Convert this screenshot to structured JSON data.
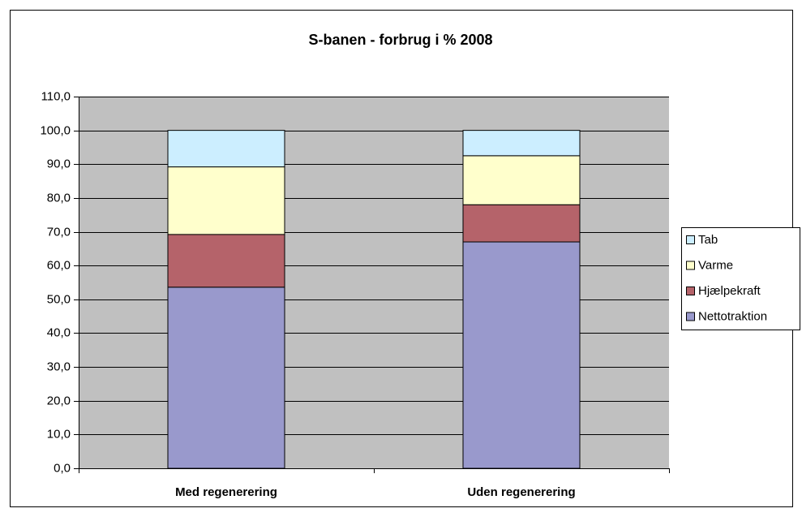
{
  "chart_data": {
    "type": "stacked_bar",
    "title": "S-banen - forbrug i % 2008",
    "categories": [
      "Med regenerering",
      "Uden regenerering"
    ],
    "series": [
      {
        "name": "Nettotraktion",
        "color": "#9999cc",
        "values": [
          53.6,
          67.0
        ]
      },
      {
        "name": "Hjælpekraft",
        "color": "#b5636a",
        "values": [
          15.6,
          11.0
        ]
      },
      {
        "name": "Varme",
        "color": "#ffffcc",
        "values": [
          20.0,
          14.5
        ]
      },
      {
        "name": "Tab",
        "color": "#cceeff",
        "values": [
          10.8,
          7.5
        ]
      }
    ],
    "ylim": [
      0,
      110
    ],
    "yticks": [
      {
        "value": 0,
        "label": "0,0"
      },
      {
        "value": 10,
        "label": "10,0"
      },
      {
        "value": 20,
        "label": "20,0"
      },
      {
        "value": 30,
        "label": "30,0"
      },
      {
        "value": 40,
        "label": "40,0"
      },
      {
        "value": 50,
        "label": "50,0"
      },
      {
        "value": 60,
        "label": "60,0"
      },
      {
        "value": 70,
        "label": "70,0"
      },
      {
        "value": 80,
        "label": "80,0"
      },
      {
        "value": 90,
        "label": "90,0"
      },
      {
        "value": 100,
        "label": "100,0"
      },
      {
        "value": 110,
        "label": "110,0"
      }
    ],
    "grid": true,
    "legend": "right"
  }
}
